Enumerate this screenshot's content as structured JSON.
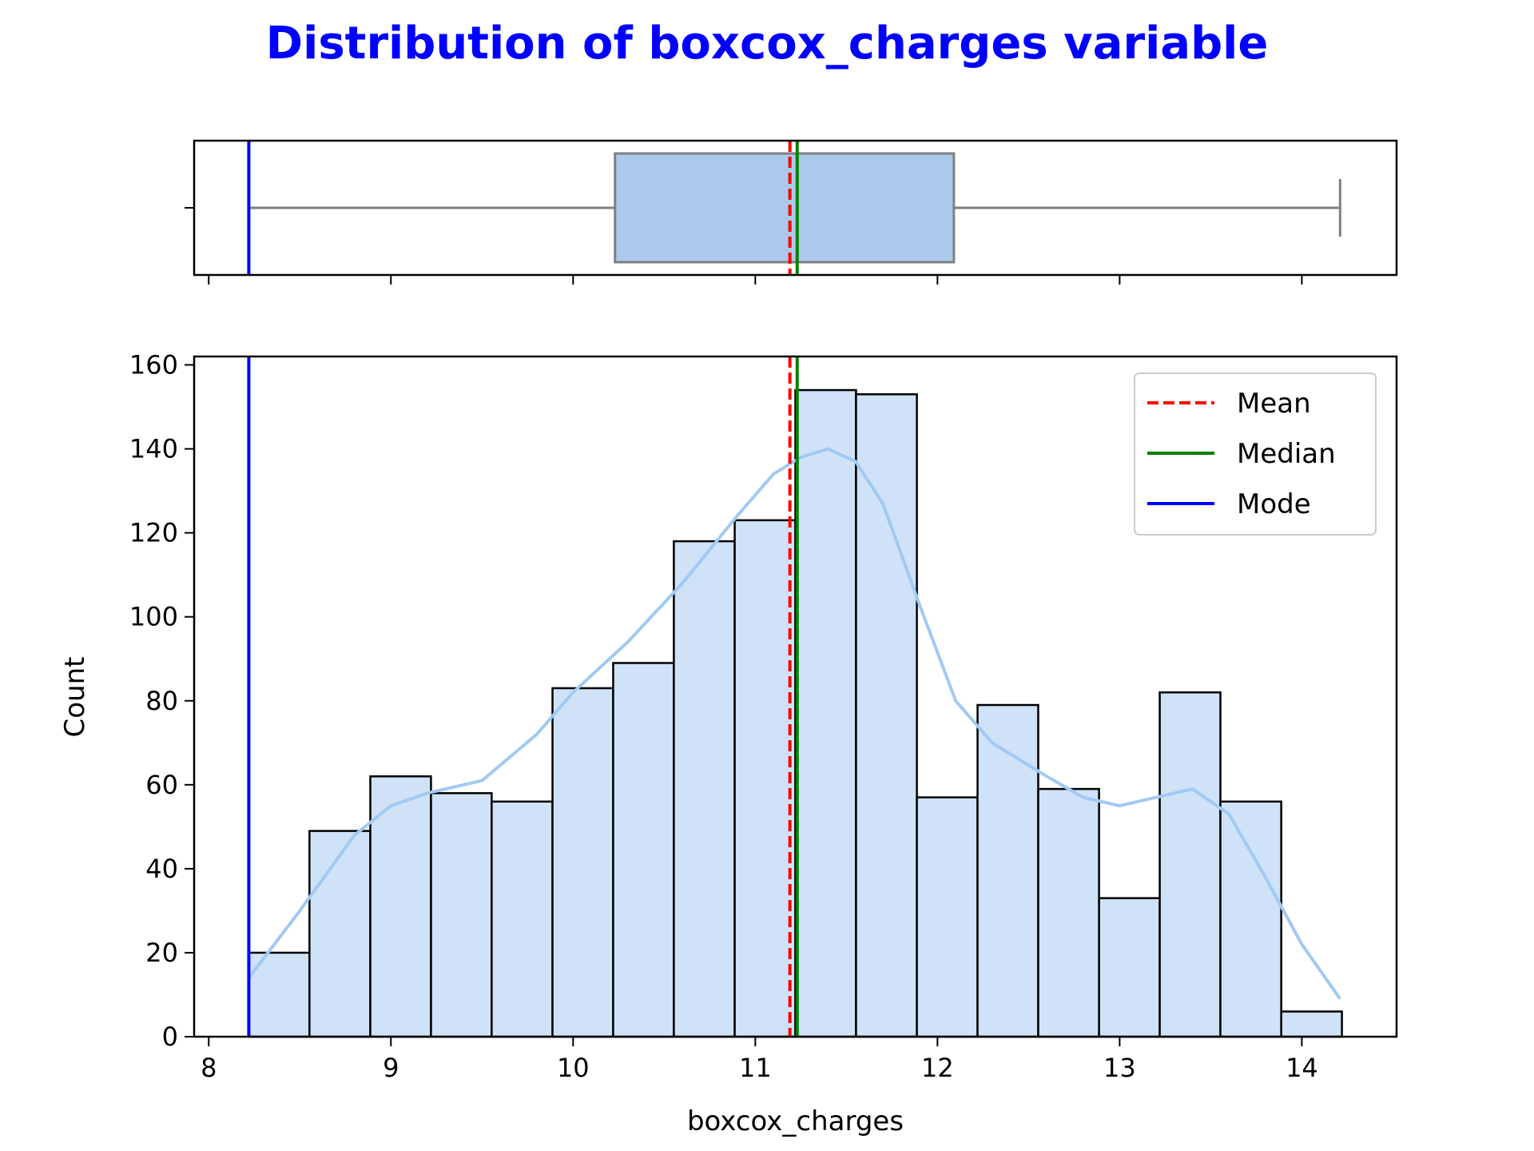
{
  "title": "Distribution of boxcox_charges variable",
  "title_color": "#0000ff",
  "chart_data": [
    {
      "type": "box",
      "orientation": "horizontal",
      "xlim": [
        7.92,
        14.52
      ],
      "xticks": [
        8,
        9,
        10,
        11,
        12,
        13,
        14
      ],
      "x_tick_labels_visible": false,
      "whisker_low": 8.22,
      "q1": 10.23,
      "median": 11.23,
      "q3": 12.09,
      "whisker_high": 14.21,
      "box_color": "#abc9ec",
      "lines": {
        "mean": 11.19,
        "median": 11.23,
        "mode": 8.22
      }
    },
    {
      "type": "bar",
      "subtype": "histogram",
      "xlabel": "boxcox_charges",
      "ylabel": "Count",
      "xlim": [
        7.92,
        14.52
      ],
      "ylim": [
        0,
        162
      ],
      "xticks": [
        8,
        9,
        10,
        11,
        12,
        13,
        14
      ],
      "yticks": [
        0,
        20,
        40,
        60,
        80,
        100,
        120,
        140,
        160
      ],
      "bin_edges": [
        8.22,
        8.553,
        8.887,
        9.22,
        9.553,
        9.887,
        10.22,
        10.553,
        10.887,
        11.22,
        11.553,
        11.887,
        12.22,
        12.553,
        12.887,
        13.22,
        13.553,
        13.887,
        14.22
      ],
      "values": [
        20,
        49,
        62,
        58,
        56,
        83,
        89,
        118,
        123,
        154,
        153,
        57,
        79,
        59,
        33,
        82,
        56,
        6
      ],
      "bar_color": "#cfe2f7",
      "kde_color": "#a1c9f4",
      "kde": {
        "x": [
          8.22,
          8.5,
          8.8,
          9.0,
          9.2,
          9.5,
          9.8,
          10.0,
          10.3,
          10.6,
          10.9,
          11.1,
          11.25,
          11.4,
          11.55,
          11.7,
          11.9,
          12.1,
          12.3,
          12.6,
          12.8,
          13.0,
          13.2,
          13.4,
          13.6,
          13.8,
          14.0,
          14.21
        ],
        "y": [
          14,
          30,
          48,
          55,
          58,
          61,
          72,
          82,
          94,
          108,
          124,
          134,
          138,
          140,
          137,
          127,
          103,
          80,
          70,
          62,
          57,
          55,
          57,
          59,
          53,
          38,
          22,
          9
        ]
      },
      "lines": [
        {
          "name": "Mean",
          "x": 11.19,
          "color": "#ff0000",
          "style": "dashed"
        },
        {
          "name": "Median",
          "x": 11.23,
          "color": "#008000",
          "style": "solid"
        },
        {
          "name": "Mode",
          "x": 8.22,
          "color": "#0000ff",
          "style": "solid"
        }
      ],
      "legend": "top-right"
    }
  ]
}
